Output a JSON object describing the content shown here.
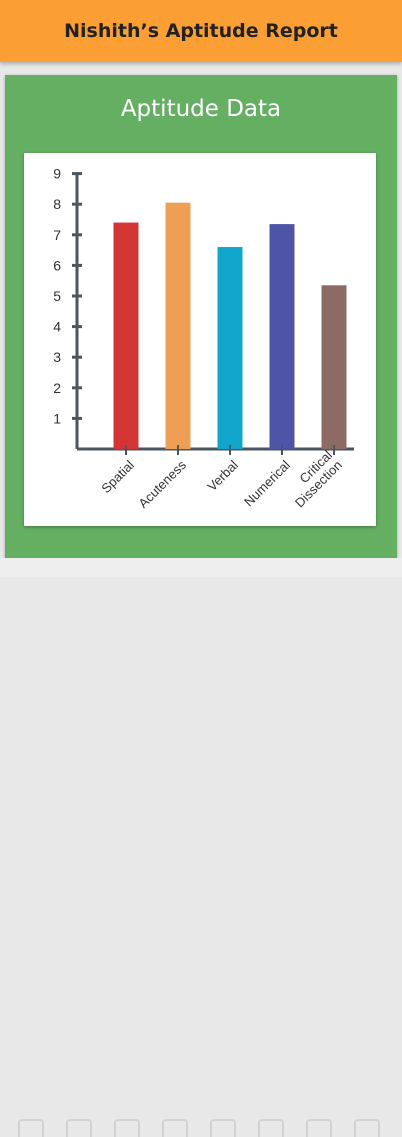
{
  "header": {
    "title": "Nishith’s Aptitude Report"
  },
  "card": {
    "title": "Aptitude Data"
  },
  "colors": {
    "header_bg": "#fb9f34",
    "card_bg": "#65af63",
    "axis": "#4a5660"
  },
  "chart_data": {
    "type": "bar",
    "title": "",
    "xlabel": "",
    "ylabel": "",
    "categories": [
      "Spatial",
      "Acuteness",
      "Verbal",
      "Numerical",
      "Critical Dissection"
    ],
    "category_lines": [
      [
        "Spatial"
      ],
      [
        "Acuteness"
      ],
      [
        "Verbal"
      ],
      [
        "Numerical"
      ],
      [
        "Critical",
        "Dissection"
      ]
    ],
    "values": [
      7.4,
      8.05,
      6.6,
      7.35,
      5.35
    ],
    "bar_colors": [
      "#d33434",
      "#ef9f55",
      "#11a5cc",
      "#4e55a6",
      "#8c6c62"
    ],
    "ylim": [
      0,
      9
    ],
    "yticks": [
      1,
      2,
      3,
      4,
      5,
      6,
      7,
      8,
      9
    ],
    "grid": false,
    "legend": "none"
  },
  "bottom_icons": [
    "pencil-icon",
    "clipboard-icon",
    "calculator-icon",
    "profile-icon",
    "book-icon",
    "pencil-icon",
    "document-icon",
    "calculator-icon"
  ]
}
